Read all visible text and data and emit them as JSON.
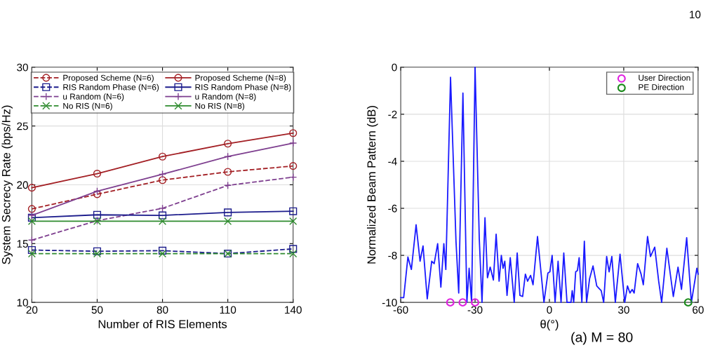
{
  "chart_data": [
    {
      "type": "line",
      "xlabel": "Number of RIS Elements",
      "ylabel": "System Secrecy Rate (bps/Hz)",
      "x": [
        20,
        50,
        80,
        110,
        140
      ],
      "xlim": [
        20,
        140
      ],
      "xticks": [
        20,
        50,
        80,
        110,
        140
      ],
      "ylim": [
        10,
        30
      ],
      "yticks": [
        10,
        15,
        20,
        25,
        30
      ],
      "grid": true,
      "legend": "top",
      "series": [
        {
          "name": "Proposed Scheme (N=6)",
          "color": "#a31f24",
          "marker": "circle",
          "line_style": "dashed",
          "values": [
            17.95,
            19.2,
            20.4,
            21.1,
            21.6
          ]
        },
        {
          "name": "RIS Random Phase (N=6)",
          "color": "#1c1c8c",
          "marker": "square",
          "line_style": "dashed",
          "values": [
            14.45,
            14.35,
            14.4,
            14.15,
            14.55
          ]
        },
        {
          "name": "u Random (N=6)",
          "color": "#7e3f8f",
          "marker": "plus",
          "line_style": "dashed",
          "values": [
            15.3,
            16.95,
            18.0,
            19.95,
            20.65
          ]
        },
        {
          "name": "No RIS (N=6)",
          "color": "#2e8b2e",
          "marker": "cross",
          "line_style": "dashed",
          "values": [
            14.15,
            14.15,
            14.15,
            14.15,
            14.15
          ]
        },
        {
          "name": "Proposed Scheme (N=8)",
          "color": "#a31f24",
          "marker": "circle",
          "line_style": "solid",
          "values": [
            19.75,
            20.95,
            22.4,
            23.5,
            24.4
          ]
        },
        {
          "name": "RIS Random Phase (N=8)",
          "color": "#1c1c8c",
          "marker": "square",
          "line_style": "solid",
          "values": [
            17.2,
            17.45,
            17.4,
            17.65,
            17.75
          ]
        },
        {
          "name": "u Random (N=8)",
          "color": "#7e3f8f",
          "marker": "plus",
          "line_style": "solid",
          "values": [
            17.4,
            19.45,
            20.9,
            22.4,
            23.55
          ]
        },
        {
          "name": "No RIS (N=8)",
          "color": "#2e8b2e",
          "marker": "cross",
          "line_style": "solid",
          "values": [
            16.9,
            16.9,
            16.9,
            16.9,
            16.9
          ]
        }
      ]
    },
    {
      "type": "line",
      "xlabel": "θ(°)",
      "ylabel": "Normalized Beam Pattern (dB)",
      "xlim": [
        -60,
        60
      ],
      "xticks": [
        -60,
        -30,
        0,
        30,
        60
      ],
      "ylim": [
        -10,
        0
      ],
      "yticks": [
        -10,
        -8,
        -6,
        -4,
        -2,
        0
      ],
      "grid": true,
      "legend": "top right",
      "annotations": [
        "10",
        "(a) M = 80"
      ],
      "series": [
        {
          "type": "line",
          "color": "#1a1aff",
          "marker": "none",
          "line_style": "solid",
          "x": [
            -60,
            -58.8,
            -57.1,
            -55.7,
            -53.8,
            -52.2,
            -51.0,
            -49.3,
            -47.5,
            -46.5,
            -45.1,
            -43.8,
            -42.6,
            -41.8,
            -39.9,
            -37.7,
            -36.6,
            -34.9,
            -33.3,
            -32.4,
            -31.4,
            -30.0,
            -28.3,
            -27.2,
            -26.0,
            -25.0,
            -23.9,
            -22.6,
            -21.5,
            -20.3,
            -19.4,
            -18.7,
            -18.0,
            -17.1,
            -15.8,
            -14.2,
            -13.0,
            -11.9,
            -10.8,
            -9.7,
            -8.8,
            -7.6,
            -6.6,
            -4.8,
            -2.2,
            -0.6,
            0.2,
            1.1,
            2.3,
            3.5,
            4.7,
            5.8,
            7.1,
            8.7,
            9.2,
            9.8,
            10.6,
            11.3,
            12.0,
            13.1,
            14.1,
            15.0,
            16.2,
            17.6,
            19.1,
            20.0,
            20.9,
            21.9,
            23.1,
            24.1,
            25.2,
            26.6,
            28.5,
            30.4,
            31.5,
            32.5,
            33.4,
            34.2,
            35.6,
            37.0,
            37.9,
            39.6,
            40.8,
            42.5,
            44.1,
            45.3,
            47.4,
            50.0,
            51.9,
            53.3,
            55.4,
            57.3,
            59.5,
            60
          ],
          "values": [
            -9.8,
            -9.8,
            -8.07,
            -8.6,
            -6.7,
            -8.25,
            -7.6,
            -9.85,
            -8.25,
            -8.35,
            -7.5,
            -9.35,
            -7.5,
            -8.6,
            -0.43,
            -7.4,
            -9.6,
            -1.1,
            -10,
            -8.55,
            -10,
            0,
            -7.3,
            -10,
            -6.4,
            -8.95,
            -8.5,
            -9.05,
            -7.1,
            -9.1,
            -8.0,
            -8.55,
            -8.25,
            -9.7,
            -8.1,
            -10,
            -7.9,
            -9.7,
            -9.75,
            -8.8,
            -9.1,
            -8.85,
            -9.25,
            -7.2,
            -10,
            -8.75,
            -8.7,
            -8.0,
            -10,
            -8.25,
            -10,
            -7.9,
            -10,
            -10,
            -9.5,
            -10,
            -8.7,
            -8.65,
            -8.1,
            -10,
            -7.4,
            -10,
            -9.0,
            -8.45,
            -9.3,
            -9.4,
            -9.5,
            -10,
            -8.05,
            -8.7,
            -8.05,
            -10,
            -7.95,
            -10,
            -9.3,
            -9.6,
            -9.45,
            -9.6,
            -8.35,
            -8.8,
            -9.25,
            -7.2,
            -8.05,
            -7.65,
            -9.1,
            -10,
            -7.7,
            -9.75,
            -8.5,
            -9.45,
            -7.25,
            -10,
            -8.55,
            -8.8
          ]
        },
        {
          "type": "scatter",
          "name": "User Direction",
          "color": "#e020e0",
          "marker": "circle",
          "x": [
            -40,
            -35,
            -30
          ],
          "values": [
            -10,
            -10,
            -10
          ]
        },
        {
          "type": "scatter",
          "name": "PE Direction",
          "color": "#1a8a1a",
          "marker": "circle",
          "x": [
            56
          ],
          "values": [
            -10
          ]
        }
      ]
    }
  ]
}
